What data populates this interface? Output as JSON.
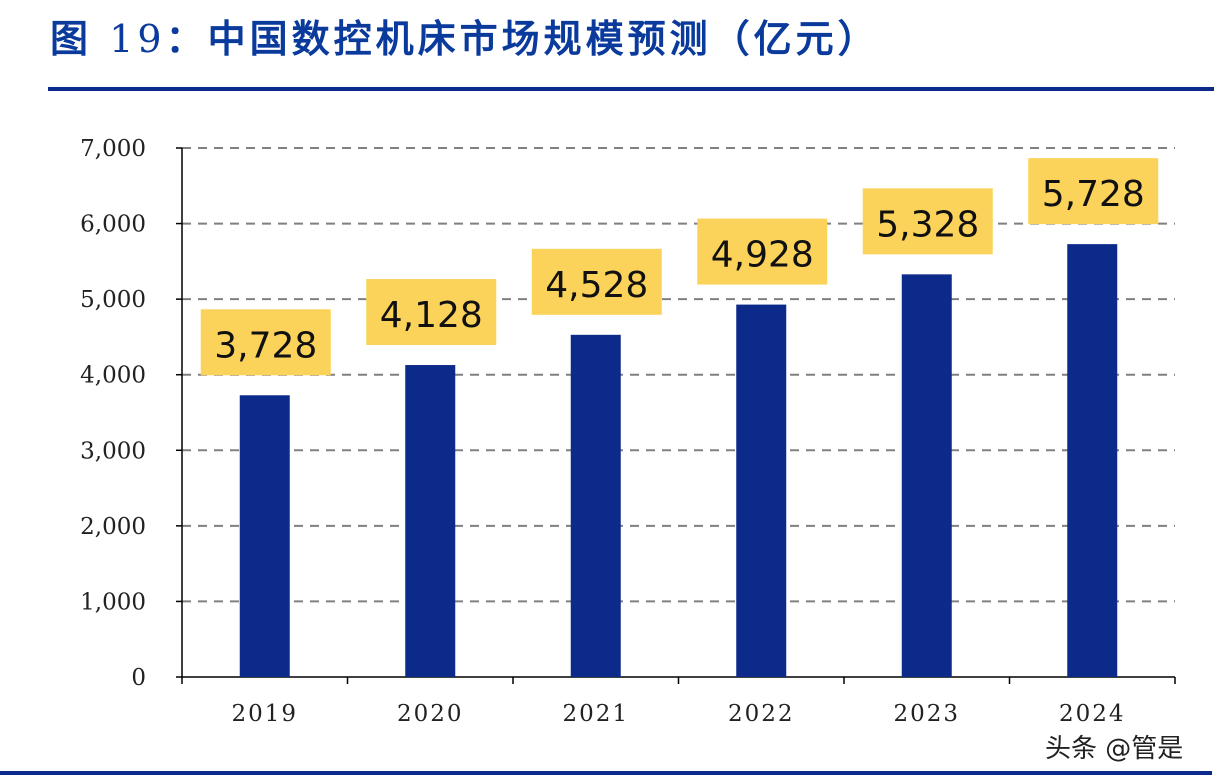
{
  "title_prefix": "图 ",
  "title_number": "19",
  "title_text": "：中国数控机床市场规模预测（亿元）",
  "watermark": "头条 @管是",
  "colors": {
    "bar": "#0b2a8a",
    "label_box": "#fbd35a",
    "grid": "#808080",
    "title": "#0a3a9c"
  },
  "chart_data": {
    "type": "bar",
    "title": "图 19：中国数控机床市场规模预测（亿元）",
    "categories": [
      "2019",
      "2020",
      "2021",
      "2022",
      "2023",
      "2024"
    ],
    "values": [
      3728,
      4128,
      4528,
      4928,
      5328,
      5728
    ],
    "data_labels": [
      "3,728",
      "4,128",
      "4,528",
      "4,928",
      "5,328",
      "5,728"
    ],
    "yticks": [
      "0",
      "1,000",
      "2,000",
      "3,000",
      "4,000",
      "5,000",
      "6,000",
      "7,000"
    ],
    "ytick_values": [
      0,
      1000,
      2000,
      3000,
      4000,
      5000,
      6000,
      7000
    ],
    "ylim": [
      0,
      7000
    ],
    "grid": "dashed horizontal",
    "xlabel": "",
    "ylabel": ""
  }
}
